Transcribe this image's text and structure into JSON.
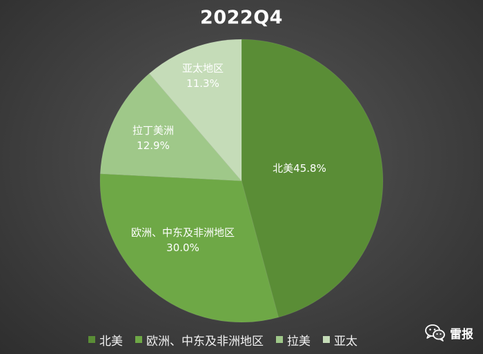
{
  "chart_data": {
    "type": "pie",
    "title": "2022Q4",
    "slices": [
      {
        "name": "北美",
        "label_line1": "北美45.8%",
        "label_line2": "",
        "value": 45.8,
        "color": "#5a8d36"
      },
      {
        "name": "欧洲、中东及非洲地区",
        "label_line1": "欧洲、中东及非洲地区",
        "label_line2": "30.0%",
        "value": 30.0,
        "color": "#6ea846"
      },
      {
        "name": "拉美",
        "label_line1": "拉丁美洲",
        "label_line2": "12.9%",
        "value": 12.9,
        "color": "#9fc889"
      },
      {
        "name": "亚太",
        "label_line1": "亚太地区",
        "label_line2": "11.3%",
        "value": 11.3,
        "color": "#c5dcb8"
      }
    ],
    "legend_position": "bottom"
  },
  "legend": [
    {
      "label": "北美",
      "color": "#5a8d36"
    },
    {
      "label": "欧洲、中东及非洲地区",
      "color": "#6ea846"
    },
    {
      "label": "拉美",
      "color": "#9fc889"
    },
    {
      "label": "亚太",
      "color": "#c5dcb8"
    }
  ],
  "watermark": {
    "text": "雷报",
    "icon": "wechat-icon"
  }
}
